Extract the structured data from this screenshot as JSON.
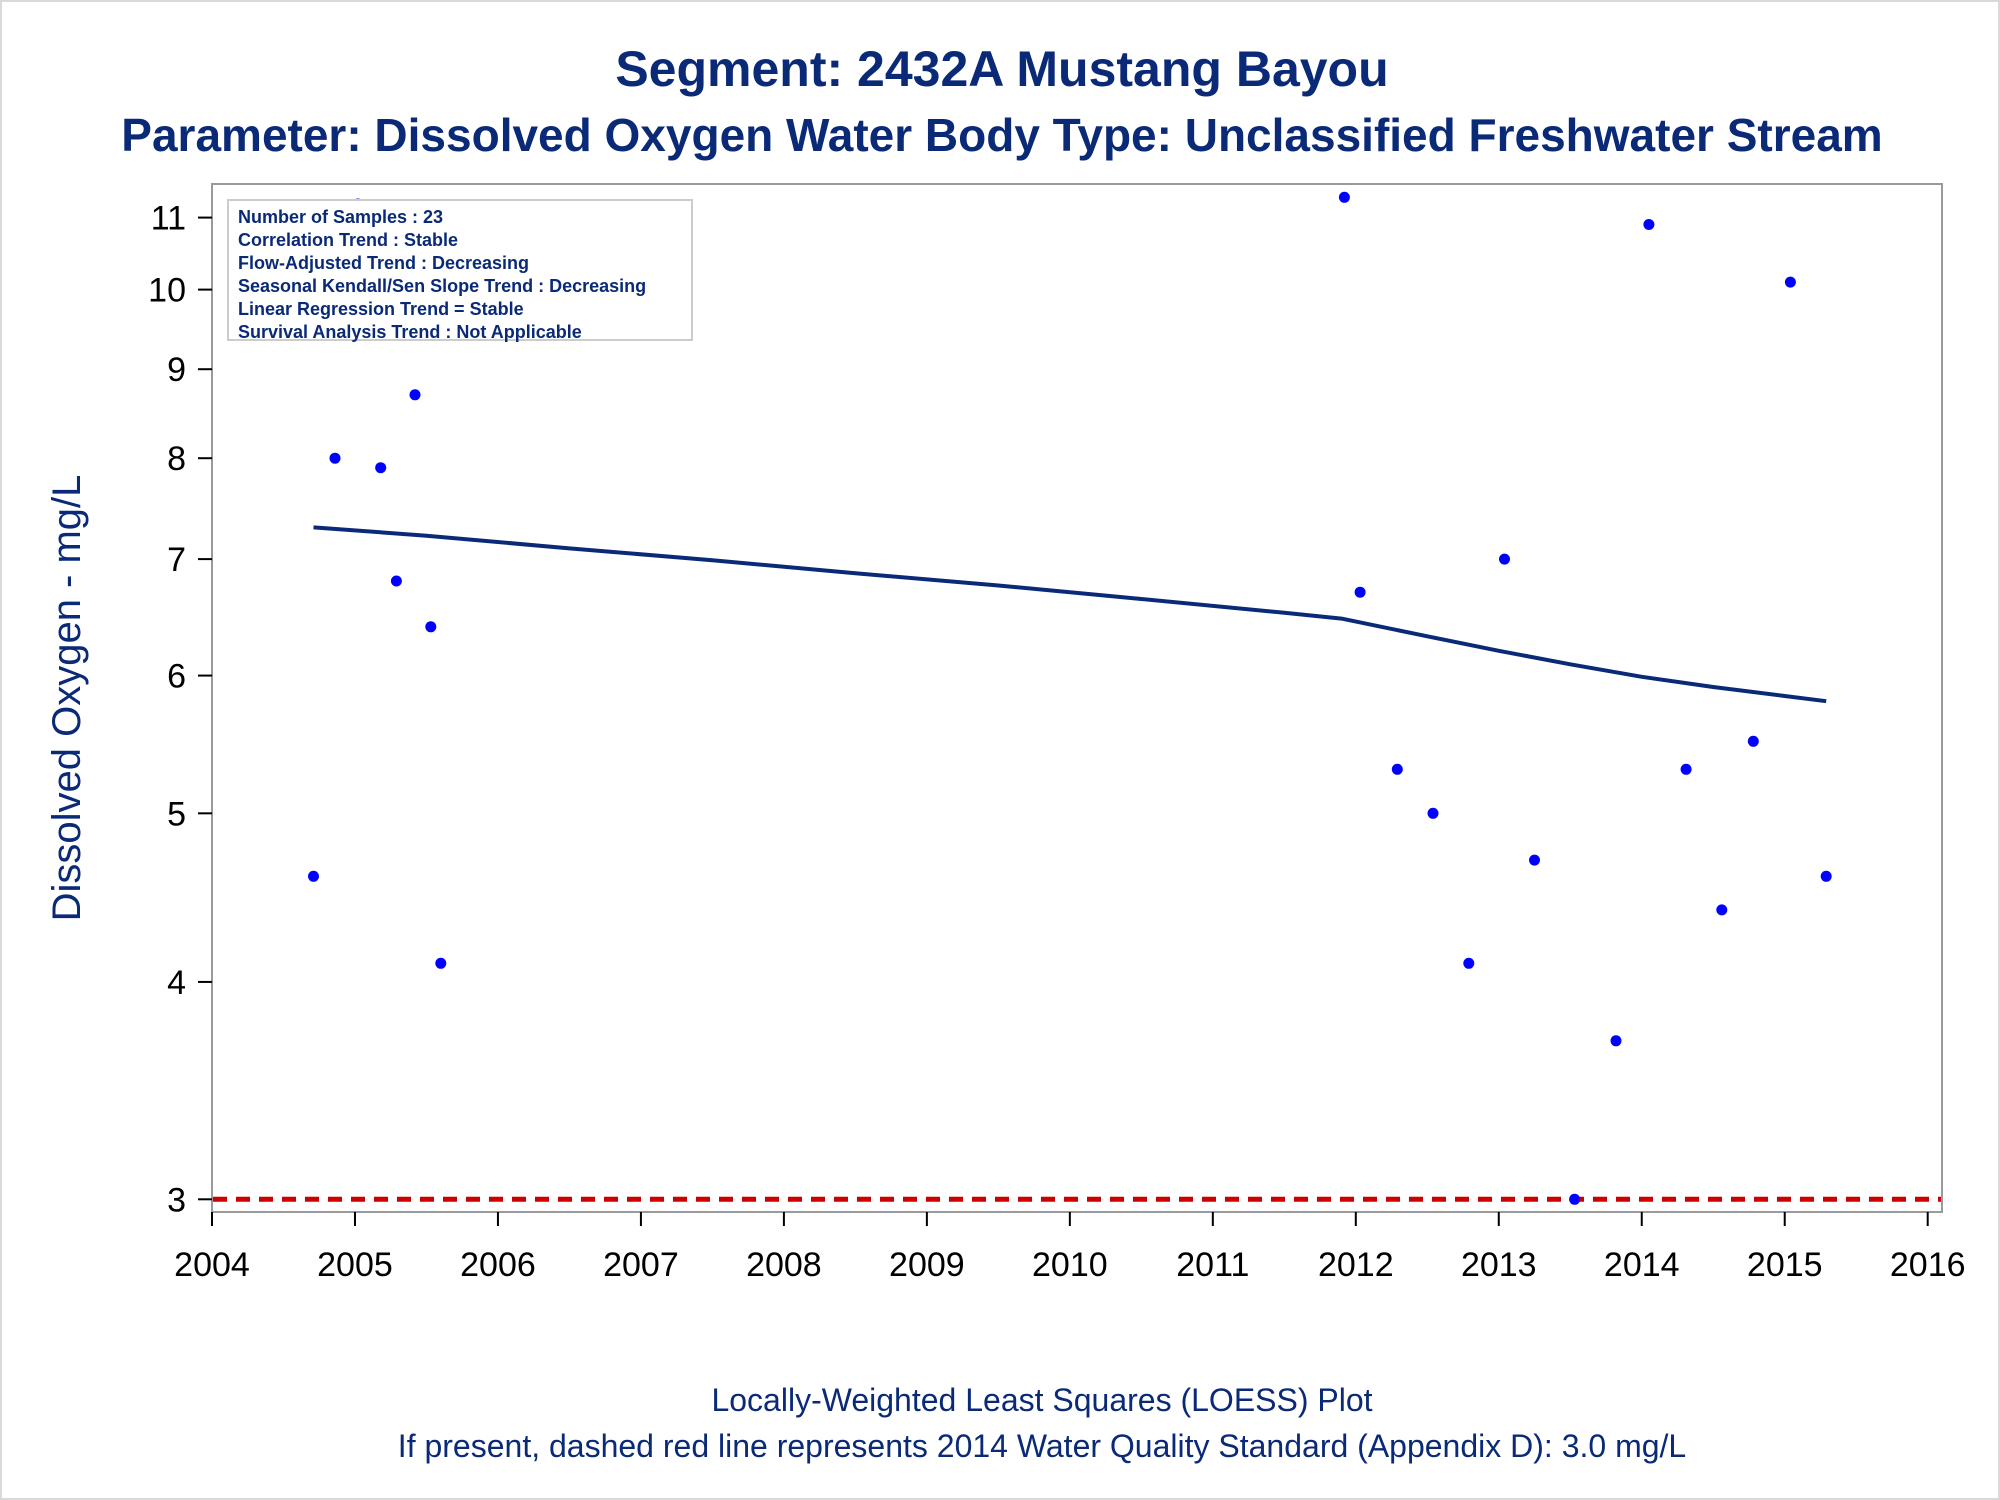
{
  "titles": {
    "line1": "Segment: 2432A  Mustang Bayou",
    "line2": "Parameter: Dissolved Oxygen   Water Body Type: Unclassified Freshwater Stream"
  },
  "footnotes": {
    "line1": "Locally-Weighted Least Squares (LOESS) Plot",
    "line2": "If present, dashed red line represents 2014 Water Quality Standard (Appendix D): 3.0 mg/L"
  },
  "stats_box": [
    "Number of Samples : 23",
    "Correlation Trend : Stable",
    "Flow-Adjusted Trend : Decreasing",
    "Seasonal Kendall/Sen Slope Trend : Decreasing",
    "Linear Regression Trend = Stable",
    "Survival Analysis Trend : Not Applicable"
  ],
  "colors": {
    "title": "#0a2a78",
    "points": "#0000ff",
    "loess": "#0a2a78",
    "standard_line": "#cc0000",
    "frame": "#9a9a9a"
  },
  "chart_data": {
    "type": "scatter",
    "ylabel": "Dissolved Oxygen - mg/L",
    "y_scale": "log",
    "xlim": [
      2004.0,
      2016.1
    ],
    "ylim": [
      2.95,
      11.5
    ],
    "x_ticks": [
      2004,
      2005,
      2006,
      2007,
      2008,
      2009,
      2010,
      2011,
      2012,
      2013,
      2014,
      2015,
      2016
    ],
    "y_ticks": [
      3,
      4,
      5,
      6,
      7,
      8,
      9,
      10,
      11
    ],
    "points": [
      {
        "x": 2004.71,
        "y": 4.6
      },
      {
        "x": 2004.86,
        "y": 8.0
      },
      {
        "x": 2005.02,
        "y": 11.2
      },
      {
        "x": 2005.18,
        "y": 7.9
      },
      {
        "x": 2005.29,
        "y": 6.8
      },
      {
        "x": 2005.42,
        "y": 8.7
      },
      {
        "x": 2005.53,
        "y": 6.4
      },
      {
        "x": 2005.6,
        "y": 4.1
      },
      {
        "x": 2011.92,
        "y": 11.3
      },
      {
        "x": 2012.03,
        "y": 6.7
      },
      {
        "x": 2012.29,
        "y": 5.3
      },
      {
        "x": 2012.54,
        "y": 5.0
      },
      {
        "x": 2012.79,
        "y": 4.1
      },
      {
        "x": 2013.04,
        "y": 7.0
      },
      {
        "x": 2013.25,
        "y": 4.7
      },
      {
        "x": 2013.53,
        "y": 3.0
      },
      {
        "x": 2013.82,
        "y": 3.7
      },
      {
        "x": 2014.05,
        "y": 10.9
      },
      {
        "x": 2014.31,
        "y": 5.3
      },
      {
        "x": 2014.56,
        "y": 4.4
      },
      {
        "x": 2014.78,
        "y": 5.5
      },
      {
        "x": 2015.04,
        "y": 10.1
      },
      {
        "x": 2015.29,
        "y": 4.6
      }
    ],
    "loess_line": [
      {
        "x": 2004.71,
        "y": 7.3
      },
      {
        "x": 2005.5,
        "y": 7.22
      },
      {
        "x": 2006.5,
        "y": 7.1
      },
      {
        "x": 2007.5,
        "y": 6.99
      },
      {
        "x": 2008.5,
        "y": 6.87
      },
      {
        "x": 2009.5,
        "y": 6.76
      },
      {
        "x": 2010.5,
        "y": 6.64
      },
      {
        "x": 2011.5,
        "y": 6.52
      },
      {
        "x": 2011.9,
        "y": 6.47
      },
      {
        "x": 2012.5,
        "y": 6.32
      },
      {
        "x": 2013.0,
        "y": 6.2
      },
      {
        "x": 2013.5,
        "y": 6.09
      },
      {
        "x": 2014.0,
        "y": 5.99
      },
      {
        "x": 2014.5,
        "y": 5.91
      },
      {
        "x": 2015.0,
        "y": 5.84
      },
      {
        "x": 2015.29,
        "y": 5.8
      }
    ],
    "standard_line": {
      "y": 3.0,
      "style": "dashed"
    },
    "grid": false
  }
}
